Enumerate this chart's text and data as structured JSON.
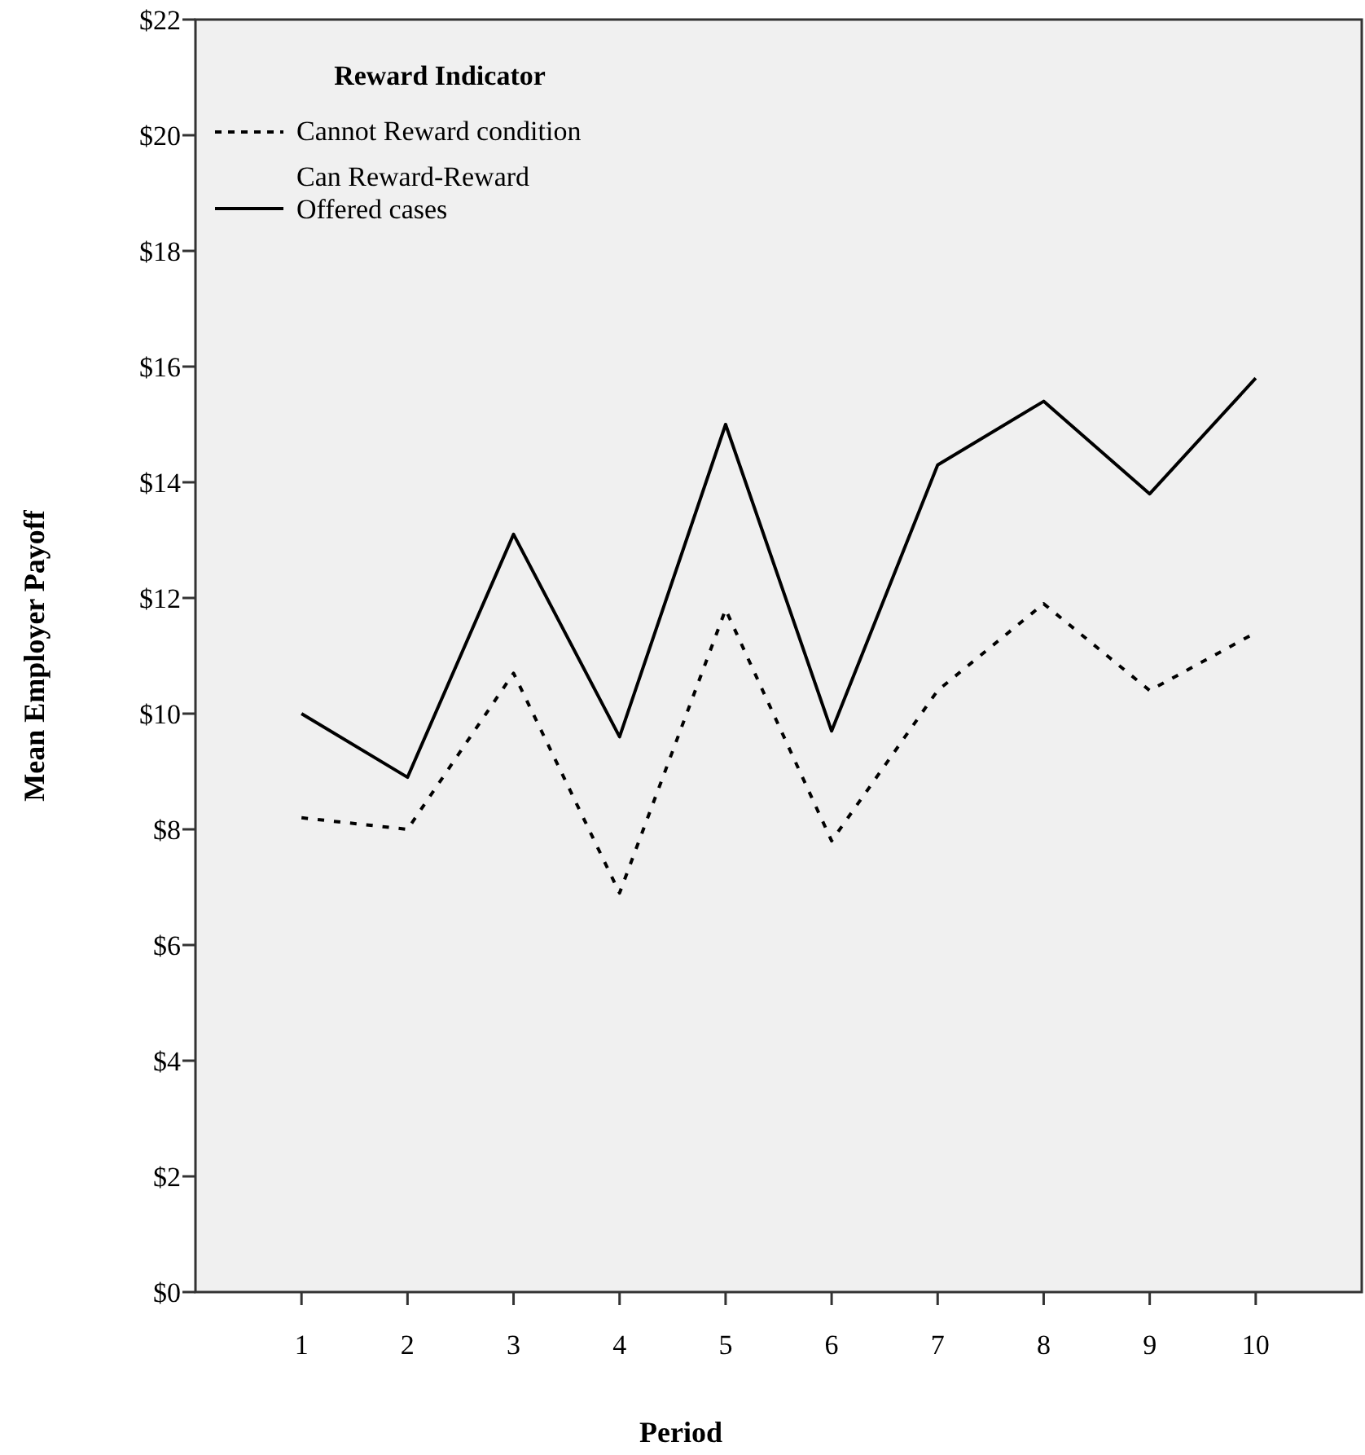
{
  "chart_data": {
    "type": "line",
    "xlabel": "Period",
    "ylabel": "Mean Employer Payoff",
    "legend_title": "Reward Indicator",
    "legend": "top left",
    "grid": false,
    "categories": [
      "1",
      "2",
      "3",
      "4",
      "5",
      "6",
      "7",
      "8",
      "9",
      "10"
    ],
    "ylim": [
      0,
      22
    ],
    "yticks": [
      {
        "value": 0,
        "label": "$0"
      },
      {
        "value": 2,
        "label": "$2"
      },
      {
        "value": 4,
        "label": "$4"
      },
      {
        "value": 6,
        "label": "$6"
      },
      {
        "value": 8,
        "label": "$8"
      },
      {
        "value": 10,
        "label": "$10"
      },
      {
        "value": 12,
        "label": "$12"
      },
      {
        "value": 14,
        "label": "$14"
      },
      {
        "value": 16,
        "label": "$16"
      },
      {
        "value": 18,
        "label": "$18"
      },
      {
        "value": 20,
        "label": "$20"
      },
      {
        "value": 22,
        "label": "$22"
      }
    ],
    "series": [
      {
        "name": "Cannot Reward condition",
        "color": "#000000",
        "line_style": "dotted",
        "values": [
          8.2,
          8.0,
          10.7,
          6.9,
          11.8,
          7.8,
          10.4,
          11.9,
          10.4,
          11.4
        ]
      },
      {
        "name": "Can Reward-Reward Offered cases",
        "color": "#000000",
        "line_style": "solid",
        "values": [
          10.0,
          8.9,
          13.1,
          9.6,
          15.0,
          9.7,
          14.3,
          15.4,
          13.8,
          15.8
        ]
      }
    ]
  }
}
